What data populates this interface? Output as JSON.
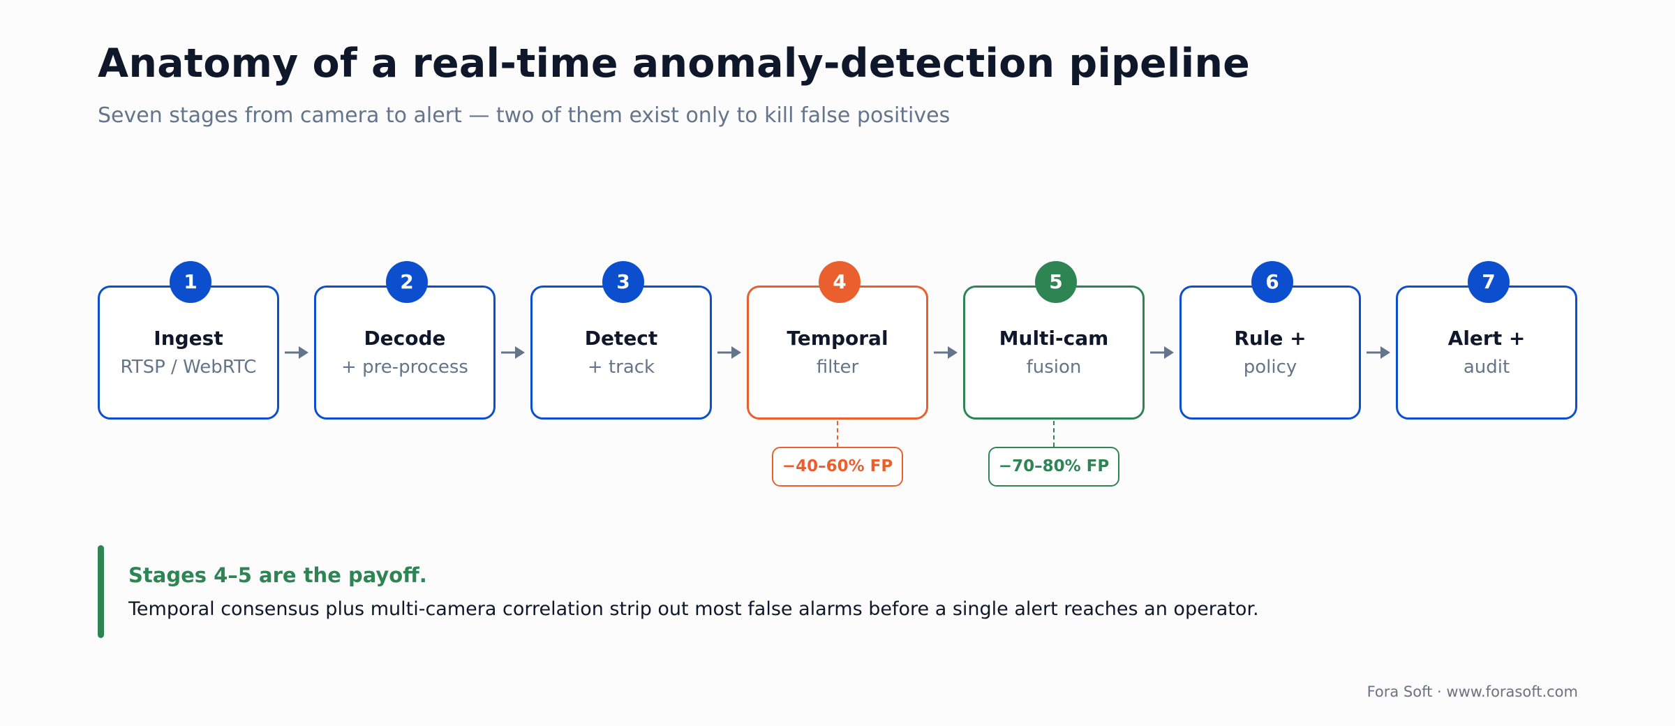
{
  "header": {
    "title": "Anatomy of a real-time anomaly-detection pipeline",
    "subtitle": "Seven stages from camera to alert — two of them exist only to kill false positives"
  },
  "stages": [
    {
      "number": "1",
      "title": "Ingest",
      "subtitle": "RTSP / WebRTC",
      "accent": "blue"
    },
    {
      "number": "2",
      "title": "Decode",
      "subtitle": "+ pre-process",
      "accent": "blue"
    },
    {
      "number": "3",
      "title": "Detect",
      "subtitle": "+ track",
      "accent": "blue"
    },
    {
      "number": "4",
      "title": "Temporal",
      "subtitle": "filter",
      "accent": "orange",
      "fp_reduction": "−40–60% FP"
    },
    {
      "number": "5",
      "title": "Multi-cam",
      "subtitle": "fusion",
      "accent": "green",
      "fp_reduction": "−70–80% FP"
    },
    {
      "number": "6",
      "title": "Rule +",
      "subtitle": "policy",
      "accent": "blue"
    },
    {
      "number": "7",
      "title": "Alert +",
      "subtitle": "audit",
      "accent": "blue"
    }
  ],
  "callout": {
    "title": "Stages 4–5 are the payoff.",
    "body": "Temporal consensus plus multi-camera correlation strip out most false alarms before a single alert reaches an operator."
  },
  "footer": {
    "credit": "Fora Soft · www.forasoft.com"
  },
  "colors": {
    "blue": "#0b4fcf",
    "orange": "#ea5f2e",
    "green": "#2e8553",
    "arrow": "#64748b",
    "title": "#0f172a",
    "muted": "#64748b"
  }
}
